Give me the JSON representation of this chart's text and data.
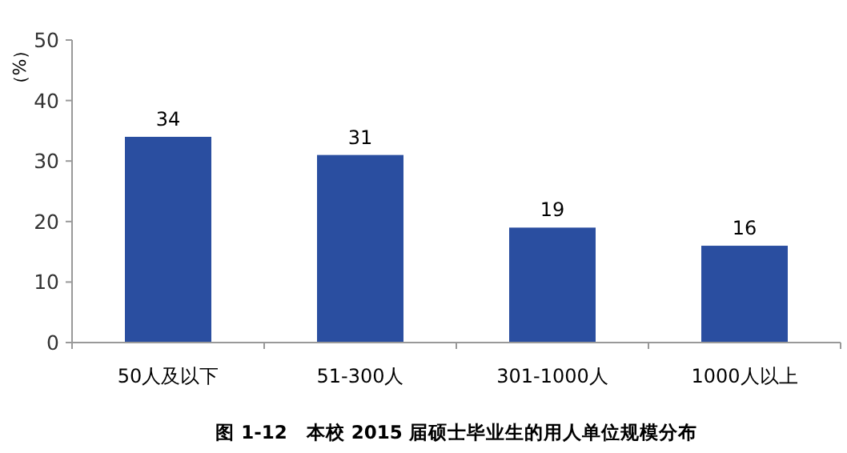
{
  "chart_data": {
    "type": "bar",
    "title": "图 1-12　本校 2015 届硕士毕业生的用人单位规模分布",
    "ylabel": "（%）",
    "categories": [
      "50人及以下",
      "51-300人",
      "301-1000人",
      "1000人以上"
    ],
    "values": [
      34,
      31,
      19,
      16
    ],
    "color": "#2a4ea0",
    "data_labels": true,
    "ylim": [
      0,
      50
    ],
    "yticks": [
      0,
      10,
      20,
      30,
      40,
      50
    ],
    "grid": false
  }
}
